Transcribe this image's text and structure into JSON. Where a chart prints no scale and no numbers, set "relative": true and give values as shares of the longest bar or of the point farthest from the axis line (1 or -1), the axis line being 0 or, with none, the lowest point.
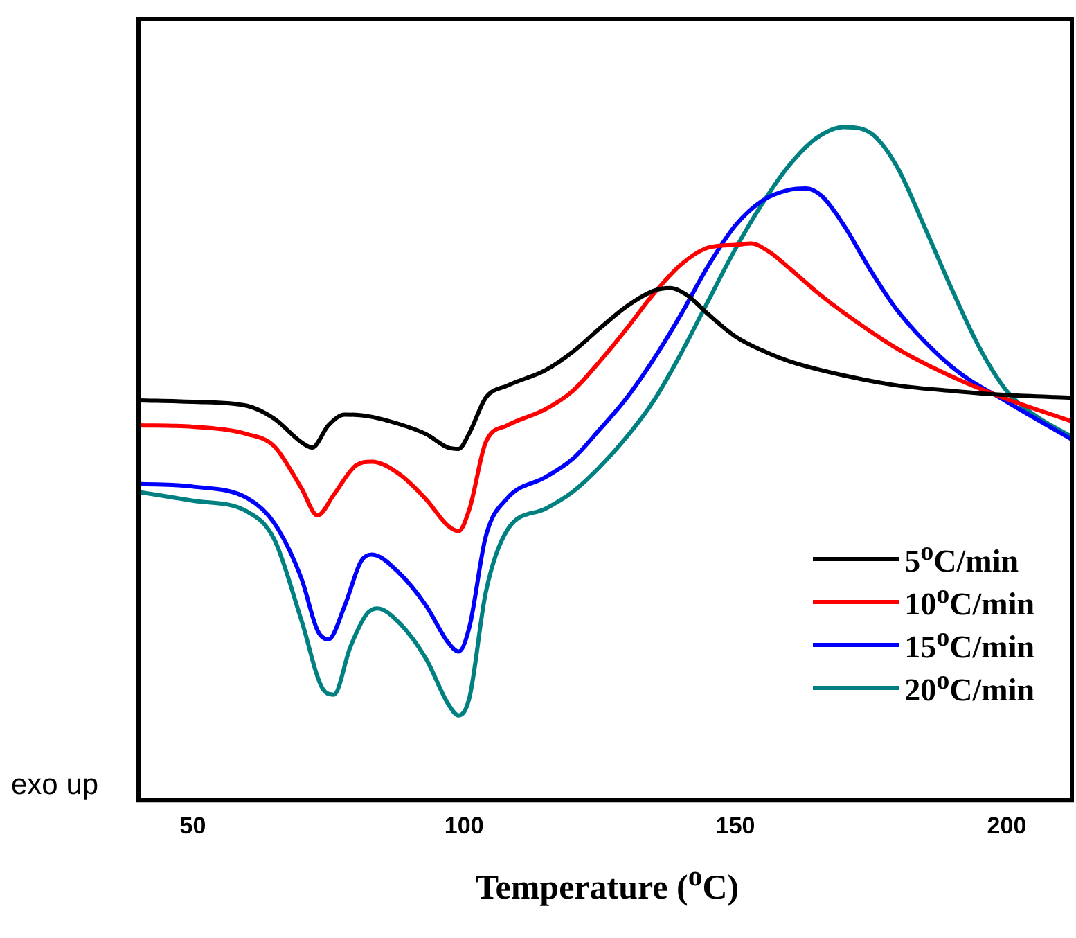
{
  "chart_data": {
    "type": "line",
    "relative": true,
    "xlabel": "Temperature ($^{o}$C)",
    "annotations": [
      "exo up"
    ],
    "xlim": [
      40,
      212
    ],
    "xticks": [
      50,
      100,
      150,
      200
    ],
    "tick_labels": "x",
    "grid": false,
    "legend": "bottom right",
    "marker": "none",
    "line_style": "solid",
    "series": [
      {
        "name": "5$^{o}$C/min",
        "color": "#000000",
        "x": [
          40,
          50,
          60,
          65,
          70,
          72,
          75,
          78,
          82,
          88,
          93,
          97,
          99,
          101,
          104,
          108,
          115,
          120,
          125,
          130,
          135,
          138,
          141,
          145,
          150,
          155,
          160,
          170,
          180,
          190,
          200,
          212
        ],
        "values": [
          0.594,
          0.592,
          0.586,
          0.567,
          0.532,
          0.524,
          0.557,
          0.573,
          0.571,
          0.559,
          0.544,
          0.524,
          0.522,
          0.546,
          0.598,
          0.616,
          0.639,
          0.666,
          0.701,
          0.734,
          0.757,
          0.761,
          0.751,
          0.722,
          0.689,
          0.668,
          0.652,
          0.631,
          0.616,
          0.608,
          0.602,
          0.598
        ]
      },
      {
        "name": "10$^{o}$C/min",
        "color": "#ff0000",
        "x": [
          40,
          50,
          60,
          65,
          70,
          73,
          76,
          80,
          83,
          88,
          93,
          97,
          99,
          101,
          104,
          108,
          115,
          120,
          125,
          130,
          135,
          140,
          145,
          150,
          153,
          156,
          160,
          165,
          170,
          180,
          190,
          200,
          212
        ],
        "values": [
          0.557,
          0.555,
          0.544,
          0.526,
          0.464,
          0.423,
          0.454,
          0.497,
          0.503,
          0.485,
          0.447,
          0.408,
          0.4,
          0.433,
          0.532,
          0.557,
          0.581,
          0.608,
          0.652,
          0.701,
          0.753,
          0.796,
          0.821,
          0.825,
          0.827,
          0.816,
          0.79,
          0.755,
          0.724,
          0.67,
          0.629,
          0.596,
          0.563
        ]
      },
      {
        "name": "15$^{o}$C/min",
        "color": "#0000ff",
        "x": [
          40,
          50,
          60,
          65,
          70,
          73,
          75,
          78,
          81,
          83,
          88,
          93,
          97,
          99,
          101,
          104,
          108,
          115,
          120,
          125,
          130,
          135,
          140,
          145,
          150,
          155,
          160,
          163,
          166,
          170,
          175,
          180,
          190,
          200,
          212
        ],
        "values": [
          0.47,
          0.466,
          0.449,
          0.412,
          0.33,
          0.252,
          0.239,
          0.289,
          0.355,
          0.365,
          0.338,
          0.289,
          0.235,
          0.221,
          0.258,
          0.392,
          0.449,
          0.48,
          0.507,
          0.551,
          0.598,
          0.656,
          0.722,
          0.794,
          0.854,
          0.891,
          0.907,
          0.909,
          0.897,
          0.854,
          0.786,
          0.726,
          0.643,
          0.592,
          0.536
        ]
      },
      {
        "name": "20$^{o}$C/min",
        "color": "#008080",
        "x": [
          40,
          50,
          60,
          65,
          70,
          74,
          76,
          79,
          82,
          84,
          88,
          93,
          97,
          99,
          101,
          104,
          108,
          115,
          120,
          125,
          130,
          135,
          140,
          145,
          150,
          155,
          160,
          165,
          170,
          173,
          176,
          180,
          185,
          190,
          195,
          200,
          205,
          212
        ],
        "values": [
          0.458,
          0.445,
          0.429,
          0.388,
          0.268,
          0.165,
          0.157,
          0.227,
          0.276,
          0.285,
          0.264,
          0.21,
          0.144,
          0.126,
          0.153,
          0.309,
          0.402,
          0.433,
          0.458,
          0.495,
          0.54,
          0.594,
          0.664,
          0.742,
          0.819,
          0.887,
          0.944,
          0.984,
          1,
          0.998,
          0.984,
          0.938,
          0.849,
          0.757,
          0.672,
          0.608,
          0.573,
          0.54
        ]
      }
    ]
  }
}
